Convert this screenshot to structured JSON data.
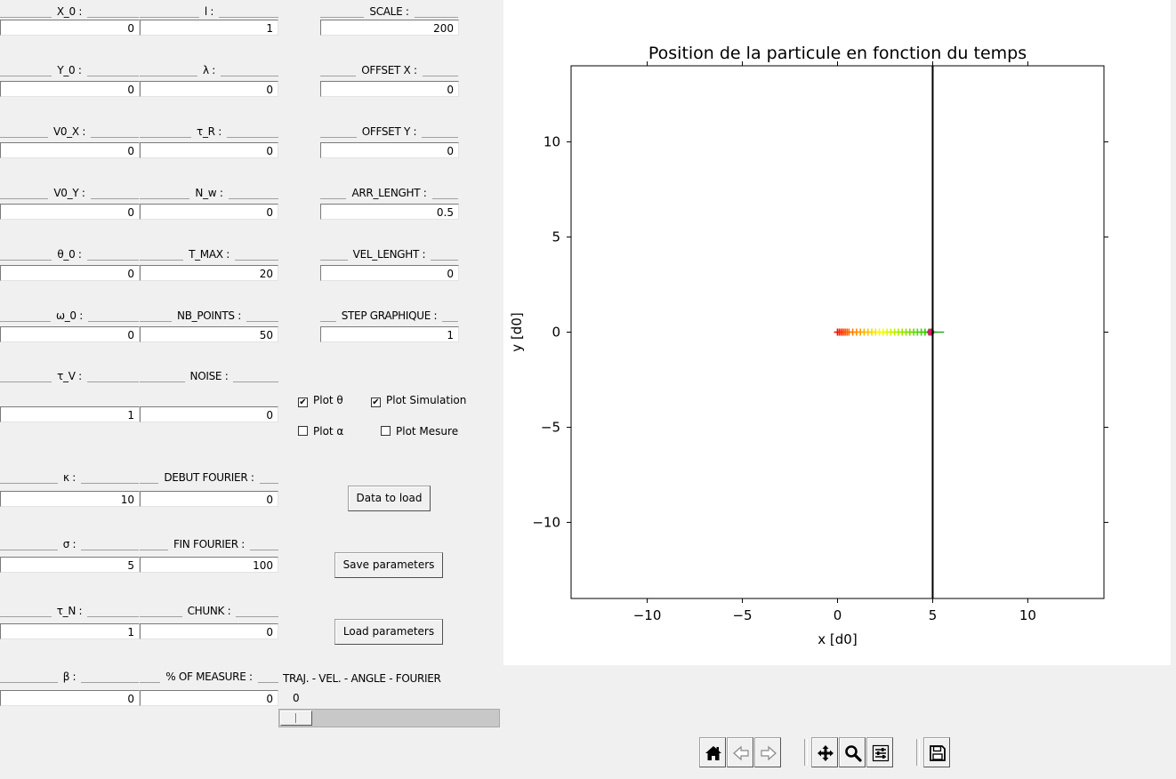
{
  "fields": {
    "x0": {
      "label": "X_0 :",
      "value": "0"
    },
    "l": {
      "label": "l :",
      "value": "1"
    },
    "scale": {
      "label": "SCALE :",
      "value": "200"
    },
    "y0": {
      "label": "Y_0 :",
      "value": "0"
    },
    "lambda": {
      "label": "λ :",
      "value": "0"
    },
    "offset_x": {
      "label": "OFFSET X :",
      "value": "0"
    },
    "v0x": {
      "label": "V0_X :",
      "value": "0"
    },
    "tau_r": {
      "label": "τ_R :",
      "value": "0"
    },
    "offset_y": {
      "label": "OFFSET Y :",
      "value": "0"
    },
    "v0y": {
      "label": "V0_Y :",
      "value": "0"
    },
    "n_w": {
      "label": "N_w :",
      "value": "0"
    },
    "arr_lenght": {
      "label": "ARR_LENGHT :",
      "value": "0.5"
    },
    "theta0": {
      "label": "θ_0 :",
      "value": "0"
    },
    "t_max": {
      "label": "T_MAX :",
      "value": "20"
    },
    "vel_lenght": {
      "label": "VEL_LENGHT :",
      "value": "0"
    },
    "omega0": {
      "label": "ω_0 :",
      "value": "0"
    },
    "nb_points": {
      "label": "NB_POINTS :",
      "value": "50"
    },
    "step_graphique": {
      "label": "STEP GRAPHIQUE :",
      "value": "1"
    },
    "tau_v": {
      "label": "τ_V :",
      "value": "1"
    },
    "noise": {
      "label": "NOISE :",
      "value": "0"
    },
    "kappa": {
      "label": "κ :",
      "value": "10"
    },
    "debut_fourier": {
      "label": "DEBUT FOURIER :",
      "value": "0"
    },
    "sigma": {
      "label": "σ :",
      "value": "5"
    },
    "fin_fourier": {
      "label": "FIN FOURIER :",
      "value": "100"
    },
    "tau_n": {
      "label": "τ_N :",
      "value": "1"
    },
    "chunk": {
      "label": "CHUNK :",
      "value": "0"
    },
    "beta": {
      "label": "β :",
      "value": "0"
    },
    "pct_measure": {
      "label": "% OF MEASURE :",
      "value": "0"
    }
  },
  "checkboxes": {
    "plot_theta": {
      "label": "Plot θ",
      "checked": true,
      "mark": "✔"
    },
    "plot_simulation": {
      "label": "Plot Simulation",
      "checked": true,
      "mark": "✔"
    },
    "plot_alpha": {
      "label": "Plot α",
      "checked": false,
      "mark": ""
    },
    "plot_mesure": {
      "label": "Plot Mesure",
      "checked": false,
      "mark": ""
    }
  },
  "buttons": {
    "data_to_load": "Data to load",
    "save_parameters": "Save parameters",
    "load_parameters": "Load parameters"
  },
  "slider": {
    "label": "TRAJ. - VEL. - ANGLE - FOURIER",
    "value": 0,
    "value_text": "0",
    "min": 0,
    "max": 3
  },
  "chart_data": {
    "type": "scatter",
    "title": "Position de la particule en fonction du temps",
    "xlabel": "x [d0]",
    "ylabel": "y [d0]",
    "xlim": [
      -14,
      14
    ],
    "ylim": [
      -14,
      14
    ],
    "xticks": [
      -10,
      -5,
      0,
      5,
      10
    ],
    "yticks": [
      -10,
      -5,
      0,
      5,
      10
    ],
    "xtick_labels": [
      "−10",
      "−5",
      "0",
      "5",
      "10"
    ],
    "ytick_labels": [
      "−10",
      "−5",
      "0",
      "5",
      "10"
    ],
    "grid": false,
    "vertical_line_x": 5,
    "trajectory": {
      "x": [
        0.0,
        0.1,
        0.2,
        0.3,
        0.4,
        0.5,
        0.6,
        0.8,
        1.0,
        1.2,
        1.4,
        1.6,
        1.8,
        2.0,
        2.2,
        2.4,
        2.6,
        2.8,
        3.0,
        3.2,
        3.4,
        3.6,
        3.8,
        4.0,
        4.2,
        4.4,
        4.6,
        4.8,
        4.9,
        5.0
      ],
      "y": [
        0,
        0,
        0,
        0,
        0,
        0,
        0,
        0,
        0,
        0,
        0,
        0,
        0,
        0,
        0,
        0,
        0,
        0,
        0,
        0,
        0,
        0,
        0,
        0,
        0,
        0,
        0,
        0,
        0,
        0
      ],
      "marker": "+",
      "color_start": "#ff0000",
      "color_mid": "#ffff00",
      "color_end": "#00c000"
    },
    "particle": {
      "x": 4.9,
      "y": 0,
      "color": "#d0206a"
    },
    "velocity_arrow": {
      "x0": 4.9,
      "y0": 0,
      "x1": 5.6,
      "y1": 0,
      "color": "#22aa22"
    }
  },
  "toolbar": {
    "items": [
      {
        "name": "home-icon"
      },
      {
        "name": "back-arrow-icon"
      },
      {
        "name": "forward-arrow-icon"
      },
      {
        "name": "pan-icon"
      },
      {
        "name": "zoom-icon"
      },
      {
        "name": "configure-subplots-icon"
      },
      {
        "name": "save-figure-icon"
      }
    ]
  }
}
